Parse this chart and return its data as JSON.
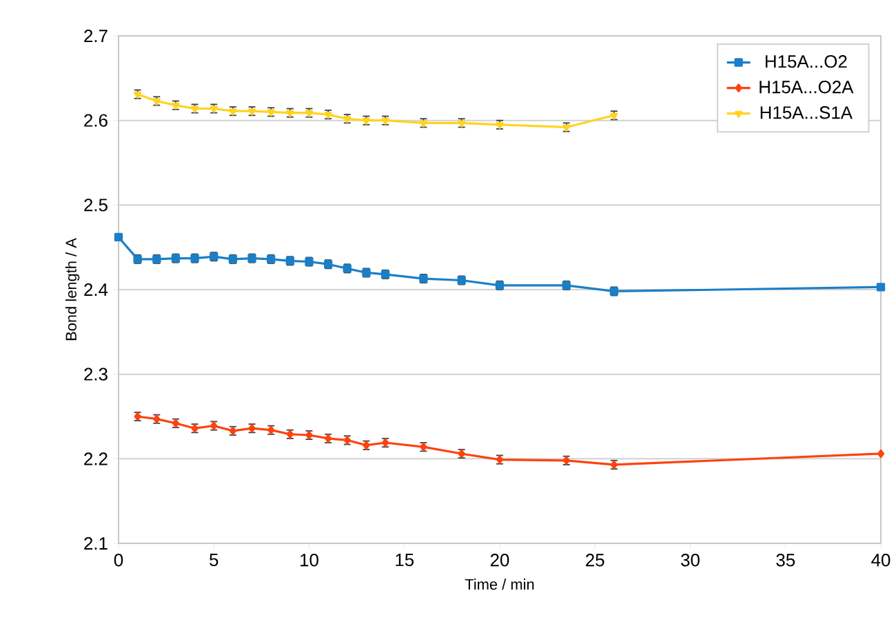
{
  "chart_data": {
    "type": "line",
    "xlabel": "Time / min",
    "ylabel": "Bond length / A",
    "xlim": [
      0,
      40
    ],
    "xticks": [
      0,
      5,
      10,
      15,
      20,
      25,
      30,
      35,
      40
    ],
    "ylim": [
      2.1,
      2.7
    ],
    "yticks": [
      2.1,
      2.2,
      2.3,
      2.4,
      2.5,
      2.6,
      2.7
    ],
    "grid": "y",
    "legend": "top right",
    "x": [
      0,
      1,
      2,
      3,
      4,
      5,
      6,
      7,
      8,
      9,
      10,
      11,
      12,
      13,
      14,
      16,
      18,
      20,
      23.5,
      26,
      40
    ],
    "series": [
      {
        "name": "H15A...O2",
        "color": "#1b7fc7",
        "marker": "square",
        "values": [
          2.462,
          2.436,
          2.436,
          2.437,
          2.437,
          2.439,
          2.436,
          2.437,
          2.436,
          2.434,
          2.433,
          2.43,
          2.425,
          2.42,
          2.418,
          2.413,
          2.411,
          2.405,
          2.405,
          2.398,
          2.403
        ],
        "errors": [
          0.004,
          0.005,
          0.005,
          0.005,
          0.005,
          0.005,
          0.005,
          0.005,
          0.005,
          0.005,
          0.005,
          0.005,
          0.005,
          0.005,
          0.005,
          0.005,
          0.005,
          0.005,
          0.005,
          0.005,
          null
        ]
      },
      {
        "name": "H15A...O2A",
        "color": "#ff420e",
        "marker": "diamond",
        "values": [
          null,
          2.25,
          2.247,
          2.242,
          2.236,
          2.239,
          2.233,
          2.236,
          2.234,
          2.229,
          2.228,
          2.224,
          2.222,
          2.216,
          2.219,
          2.214,
          2.206,
          2.199,
          2.198,
          2.193,
          2.206
        ],
        "errors": [
          null,
          0.005,
          0.005,
          0.005,
          0.005,
          0.005,
          0.005,
          0.005,
          0.005,
          0.005,
          0.005,
          0.005,
          0.005,
          0.005,
          0.005,
          0.005,
          0.005,
          0.005,
          0.005,
          0.005,
          null
        ]
      },
      {
        "name": "H15A...S1A",
        "color": "#ffd320",
        "marker": "triangle",
        "values": [
          null,
          2.631,
          2.623,
          2.618,
          2.614,
          2.614,
          2.611,
          2.611,
          2.61,
          2.609,
          2.609,
          2.607,
          2.602,
          2.6,
          2.6,
          2.597,
          2.597,
          2.595,
          2.592,
          2.606,
          null
        ],
        "errors": [
          null,
          0.005,
          0.005,
          0.005,
          0.005,
          0.005,
          0.005,
          0.005,
          0.005,
          0.005,
          0.005,
          0.005,
          0.005,
          0.005,
          0.005,
          0.005,
          0.005,
          0.005,
          0.005,
          0.005,
          null
        ]
      }
    ]
  }
}
